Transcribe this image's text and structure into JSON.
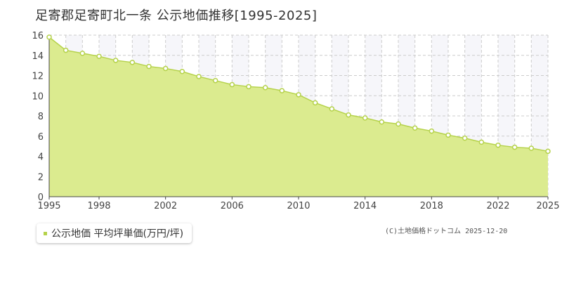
{
  "chart_data": {
    "type": "area",
    "title": "足寄郡足寄町北一条 公示地価推移[1995-2025]",
    "x": [
      1995,
      1996,
      1997,
      1998,
      1999,
      2000,
      2001,
      2002,
      2003,
      2004,
      2005,
      2006,
      2007,
      2008,
      2009,
      2010,
      2011,
      2012,
      2013,
      2014,
      2015,
      2016,
      2017,
      2018,
      2019,
      2020,
      2021,
      2022,
      2023,
      2024,
      2025
    ],
    "series": [
      {
        "name": "公示地価 平均坪単価(万円/坪)",
        "values": [
          15.8,
          14.5,
          14.2,
          13.9,
          13.5,
          13.3,
          12.9,
          12.7,
          12.4,
          11.9,
          11.5,
          11.1,
          10.9,
          10.8,
          10.5,
          10.1,
          9.3,
          8.7,
          8.1,
          7.8,
          7.4,
          7.2,
          6.8,
          6.5,
          6.1,
          5.8,
          5.4,
          5.1,
          4.9,
          4.8,
          4.5
        ]
      }
    ],
    "x_ticks": [
      "1995",
      "1998",
      "2002",
      "2006",
      "2010",
      "2014",
      "2018",
      "2022",
      "2025"
    ],
    "y_ticks": [
      "0",
      "2",
      "4",
      "6",
      "8",
      "10",
      "12",
      "14",
      "16"
    ],
    "xlim": [
      1995,
      2025
    ],
    "ylim": [
      0,
      16
    ],
    "grid": true,
    "legend_position": "bottom-left",
    "colors": {
      "fill": "#dbeb8f",
      "line": "#b5d24a",
      "marker": "#b5d24a",
      "plot_bg_alt": "#f6f6fa",
      "grid": "#cccccc"
    }
  },
  "copyright": "(C)土地価格ドットコム 2025-12-20"
}
